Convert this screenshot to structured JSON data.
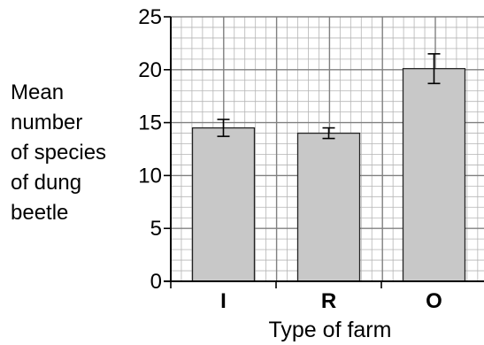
{
  "chart_data": {
    "type": "bar",
    "title": "",
    "xlabel": "Type of farm",
    "ylabel_lines": [
      "Mean",
      "number",
      "of species",
      "of dung",
      "beetle"
    ],
    "categories": [
      "I",
      "R",
      "O"
    ],
    "values": [
      14.5,
      14.0,
      20.1
    ],
    "error_low": [
      13.7,
      13.5,
      18.7
    ],
    "error_high": [
      15.3,
      14.5,
      21.5
    ],
    "ylim": [
      0,
      25
    ],
    "yticks": [
      0,
      5,
      10,
      15,
      20,
      25
    ],
    "grid": true,
    "bar_color": "#c8c8c8"
  }
}
